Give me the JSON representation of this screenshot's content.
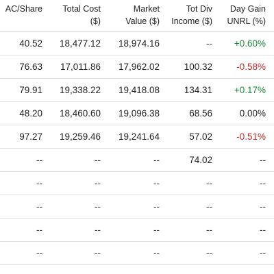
{
  "headers": [
    {
      "line1": "AC/Share",
      "line2": ""
    },
    {
      "line1": "Total Cost",
      "line2": "($)"
    },
    {
      "line1": "Market",
      "line2": "Value ($)"
    },
    {
      "line1": "Tot Div",
      "line2": "Income ($)"
    },
    {
      "line1": "Day Gain",
      "line2": "UNRL (%)"
    }
  ],
  "rows": [
    {
      "ac_share": "40.52",
      "total_cost": "18,477.12",
      "market_value": "18,974.16",
      "tot_div": "--",
      "day_gain": "+0.60%",
      "day_gain_sign": "pos"
    },
    {
      "ac_share": "76.63",
      "total_cost": "17,011.86",
      "market_value": "17,962.02",
      "tot_div": "100.32",
      "day_gain": "-0.58%",
      "day_gain_sign": "neg"
    },
    {
      "ac_share": "79.91",
      "total_cost": "19,338.22",
      "market_value": "19,418.08",
      "tot_div": "134.31",
      "day_gain": "+0.17%",
      "day_gain_sign": "pos"
    },
    {
      "ac_share": "48.20",
      "total_cost": "18,460.60",
      "market_value": "19,096.38",
      "tot_div": "68.56",
      "day_gain": "0.00%",
      "day_gain_sign": "neu"
    },
    {
      "ac_share": "97.27",
      "total_cost": "19,259.46",
      "market_value": "19,241.64",
      "tot_div": "57.02",
      "day_gain": "-0.51%",
      "day_gain_sign": "neg"
    },
    {
      "ac_share": "--",
      "total_cost": "--",
      "market_value": "--",
      "tot_div": "74.02",
      "day_gain": "--",
      "day_gain_sign": "dash"
    },
    {
      "ac_share": "--",
      "total_cost": "--",
      "market_value": "--",
      "tot_div": "--",
      "day_gain": "--",
      "day_gain_sign": "dash"
    },
    {
      "ac_share": "--",
      "total_cost": "--",
      "market_value": "--",
      "tot_div": "--",
      "day_gain": "--",
      "day_gain_sign": "dash"
    },
    {
      "ac_share": "--",
      "total_cost": "--",
      "market_value": "--",
      "tot_div": "--",
      "day_gain": "--",
      "day_gain_sign": "dash"
    },
    {
      "ac_share": "--",
      "total_cost": "--",
      "market_value": "--",
      "tot_div": "--",
      "day_gain": "--",
      "day_gain_sign": "dash"
    }
  ],
  "colors": {
    "positive": "#1b8a3c",
    "negative": "#c62828",
    "border": "#e1e1e1"
  }
}
